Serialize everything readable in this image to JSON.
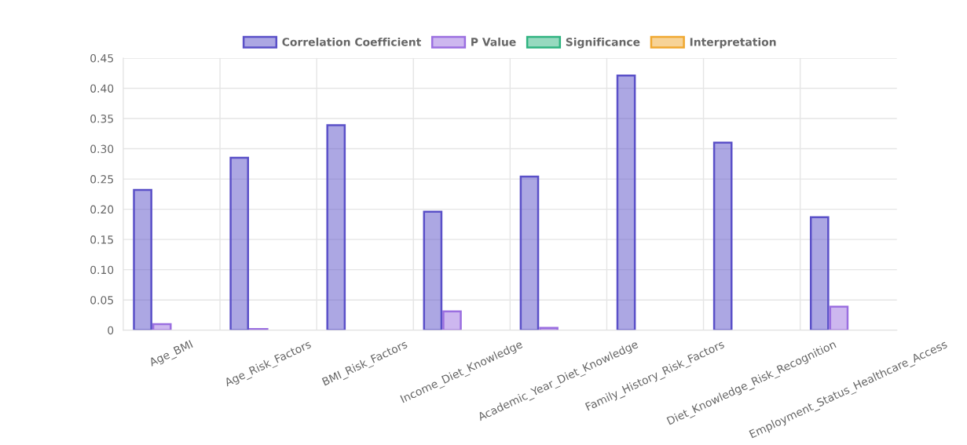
{
  "chart_data": {
    "type": "bar",
    "categories": [
      "Age_BMI",
      "Age_Risk_Factors",
      "BMI_Risk_Factors",
      "Income_Diet_Knowledge",
      "Academic_Year_Diet_Knowledge",
      "Family_History_Risk_Factors",
      "Diet_Knowledge_Risk_Recognition",
      "Employment_Status_Healthcare_Access"
    ],
    "series": [
      {
        "name": "Correlation Coefficient",
        "color": "#5a50c8",
        "values": [
          0.232,
          0.285,
          0.339,
          0.196,
          0.254,
          0.421,
          0.31,
          0.187
        ]
      },
      {
        "name": "P Value",
        "color": "#9b6fe0",
        "values": [
          0.01,
          0.002,
          null,
          0.031,
          0.004,
          null,
          null,
          0.039
        ]
      },
      {
        "name": "Significance",
        "color": "#2fb380",
        "values": [
          null,
          null,
          null,
          null,
          null,
          null,
          null,
          null
        ]
      },
      {
        "name": "Interpretation",
        "color": "#f0a830",
        "values": [
          null,
          null,
          null,
          null,
          null,
          null,
          null,
          null
        ]
      }
    ],
    "ylim": [
      0,
      0.45
    ],
    "yticks": [
      0,
      {
        "value": 0.05,
        "label": "0.05"
      },
      {
        "value": 0.1,
        "label": "0.10"
      },
      {
        "value": 0.15,
        "label": "0.15"
      },
      {
        "value": 0.2,
        "label": "0.20"
      },
      {
        "value": 0.25,
        "label": "0.25"
      },
      {
        "value": 0.3,
        "label": "0.30"
      },
      {
        "value": 0.35,
        "label": "0.35"
      },
      {
        "value": 0.4,
        "label": "0.40"
      },
      {
        "value": 0.45,
        "label": "0.45"
      }
    ],
    "grid": true,
    "legend": "top"
  }
}
